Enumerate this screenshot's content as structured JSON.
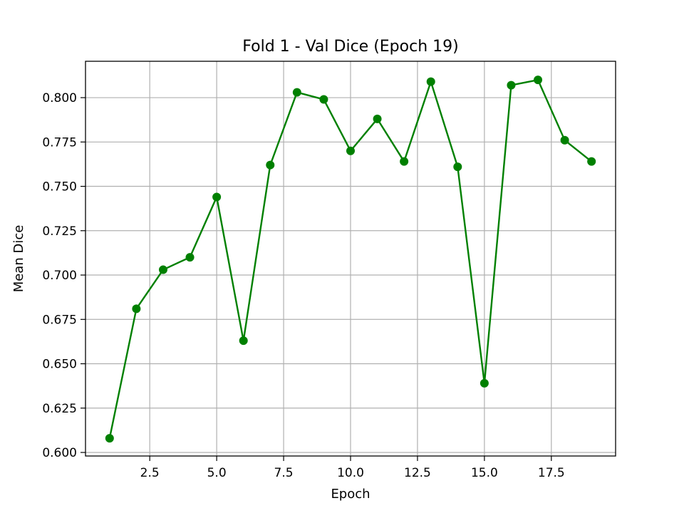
{
  "chart_data": {
    "type": "line",
    "title": "Fold 1 - Val Dice (Epoch 19)",
    "xlabel": "Epoch",
    "ylabel": "Mean Dice",
    "xlim": [
      0.1,
      19.9
    ],
    "ylim": [
      0.598,
      0.8205
    ],
    "xticks": [
      "2.5",
      "5.0",
      "7.5",
      "10.0",
      "12.5",
      "15.0",
      "17.5"
    ],
    "yticks": [
      "0.600",
      "0.625",
      "0.650",
      "0.675",
      "0.700",
      "0.725",
      "0.750",
      "0.775",
      "0.800"
    ],
    "grid": true,
    "series": [
      {
        "color": "#008000",
        "marker": "circle",
        "x": [
          1,
          2,
          3,
          4,
          5,
          6,
          7,
          8,
          9,
          10,
          11,
          12,
          13,
          14,
          15,
          16,
          17,
          18,
          19
        ],
        "y": [
          0.608,
          0.681,
          0.703,
          0.71,
          0.744,
          0.663,
          0.762,
          0.803,
          0.799,
          0.77,
          0.788,
          0.764,
          0.809,
          0.761,
          0.639,
          0.807,
          0.81,
          0.776,
          0.764
        ]
      }
    ]
  }
}
